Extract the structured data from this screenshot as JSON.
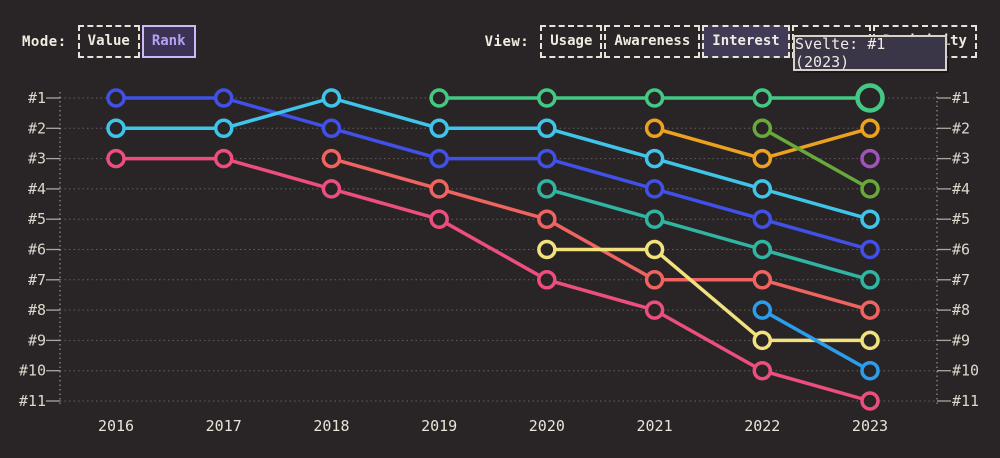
{
  "controls": {
    "mode": {
      "label": "Mode:",
      "options": [
        {
          "label": "Value",
          "active": false
        },
        {
          "label": "Rank",
          "active": true
        }
      ]
    },
    "view": {
      "label": "View:",
      "options": [
        {
          "label": "Usage",
          "active": false
        },
        {
          "label": "Awareness",
          "active": false
        },
        {
          "label": "Interest",
          "active": true
        },
        {
          "label": "",
          "active": false
        },
        {
          "label": "Positivity",
          "active": false
        }
      ]
    }
  },
  "tooltip": {
    "text": "Svelte: #1 (2023)"
  },
  "chart_data": {
    "type": "line",
    "subtype": "bump-rank-chart",
    "title": "",
    "years": [
      "2016",
      "2017",
      "2018",
      "2019",
      "2020",
      "2021",
      "2022",
      "2023"
    ],
    "rank_labels": [
      "#1",
      "#2",
      "#3",
      "#4",
      "#5",
      "#6",
      "#7",
      "#8",
      "#9",
      "#10",
      "#11"
    ],
    "grid": "dotted-horizontal-per-rank",
    "axes": {
      "left": "rank",
      "right": "rank",
      "bottom": "year"
    },
    "series": [
      {
        "name": "indigo",
        "color": "#4150e6",
        "ranks": {
          "2016": 1,
          "2017": 1,
          "2018": 2,
          "2019": 3,
          "2020": 3,
          "2021": 4,
          "2022": 5,
          "2023": 6
        }
      },
      {
        "name": "cyan",
        "color": "#3fc4ea",
        "ranks": {
          "2016": 2,
          "2017": 2,
          "2018": 1,
          "2019": 2,
          "2020": 2,
          "2021": 3,
          "2022": 4,
          "2023": 5
        }
      },
      {
        "name": "rose",
        "color": "#ed4e7e",
        "ranks": {
          "2016": 3,
          "2017": 3,
          "2018": 4,
          "2019": 5,
          "2020": 7,
          "2021": 8,
          "2022": 10,
          "2023": 11
        }
      },
      {
        "name": "salmon",
        "color": "#ef6460",
        "ranks": {
          "2018": 3,
          "2019": 4,
          "2020": 5,
          "2021": 7,
          "2022": 7,
          "2023": 8
        }
      },
      {
        "name": "teal",
        "color": "#2fb5a2",
        "ranks": {
          "2020": 4,
          "2021": 5,
          "2022": 6,
          "2023": 7
        }
      },
      {
        "name": "yellow",
        "color": "#f2e27d",
        "ranks": {
          "2020": 6,
          "2021": 6,
          "2022": 9,
          "2023": 9
        }
      },
      {
        "name": "orange",
        "color": "#eda21f",
        "ranks": {
          "2021": 2,
          "2022": 3,
          "2023": 2
        }
      },
      {
        "name": "apple-green",
        "color": "#68a93c",
        "ranks": {
          "2022": 2,
          "2023": 4
        }
      },
      {
        "name": "sky-blue",
        "color": "#2c9ded",
        "ranks": {
          "2022": 8,
          "2023": 10
        }
      },
      {
        "name": "purple",
        "color": "#9e54ba",
        "ranks": {
          "2023": 3
        }
      },
      {
        "name": "Svelte",
        "color": "#43c983",
        "ranks": {
          "2019": 1,
          "2020": 1,
          "2021": 1,
          "2022": 1,
          "2023": 1
        },
        "highlighted_point": {
          "year": "2023",
          "rank": 1
        }
      }
    ],
    "colors": {
      "background": "#292526",
      "gridline": "rgba(240,235,225,0.30)",
      "tick": "rgba(240,235,225,0.65)",
      "axis_label": "#ddd7cc",
      "year_label": "#e9e3d9"
    }
  }
}
